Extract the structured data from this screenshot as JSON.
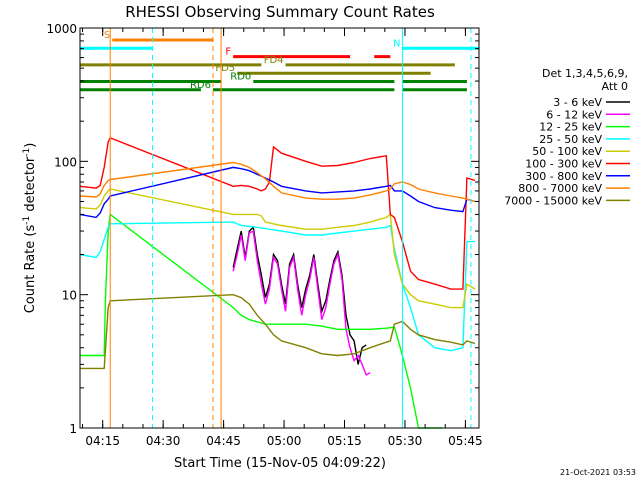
{
  "chart_data": {
    "type": "line",
    "title": "RHESSI Observing Summary Count Rates",
    "xlabel": "Start Time (15-Nov-05 04:09:22)",
    "ylabel_main": "Count Rate (s",
    "ylabel_sup1": "-1",
    "ylabel_mid": " detector",
    "ylabel_sup2": "-1",
    "ylabel_end": ")",
    "y_scale": "log",
    "ylim": [
      1,
      1000
    ],
    "xlim_minutes": [
      0,
      99
    ],
    "x_ticks": [
      {
        "m": 5.63,
        "label": "04:15"
      },
      {
        "m": 20.63,
        "label": "04:30"
      },
      {
        "m": 35.63,
        "label": "04:45"
      },
      {
        "m": 50.63,
        "label": "05:00"
      },
      {
        "m": 65.63,
        "label": "05:15"
      },
      {
        "m": 80.63,
        "label": "05:30"
      },
      {
        "m": 95.63,
        "label": "05:45"
      }
    ],
    "y_ticks": [
      {
        "v": 1,
        "label": "1"
      },
      {
        "v": 10,
        "label": "10"
      },
      {
        "v": 100,
        "label": "100"
      },
      {
        "v": 1000,
        "label": "1000"
      }
    ],
    "legend_header": [
      "Det 1,3,4,5,6,9,",
      "Att 0"
    ],
    "legend_position": "right",
    "timestamp": "21-Oct-2021 03:53",
    "series": [
      {
        "name": "3 - 6 keV",
        "color": "#000000",
        "points": [
          [
            38,
            16
          ],
          [
            39,
            22
          ],
          [
            40,
            30
          ],
          [
            41,
            19
          ],
          [
            42,
            30
          ],
          [
            43,
            32
          ],
          [
            44,
            20
          ],
          [
            45,
            14
          ],
          [
            46,
            9.5
          ],
          [
            47,
            12
          ],
          [
            48,
            20
          ],
          [
            49,
            18
          ],
          [
            50,
            12
          ],
          [
            51,
            8.5
          ],
          [
            52,
            17
          ],
          [
            53,
            20
          ],
          [
            54,
            12
          ],
          [
            55,
            8
          ],
          [
            56,
            11
          ],
          [
            57,
            14
          ],
          [
            58,
            20
          ],
          [
            59,
            12
          ],
          [
            60,
            7.5
          ],
          [
            61,
            9
          ],
          [
            62,
            13
          ],
          [
            63,
            18
          ],
          [
            64,
            21
          ],
          [
            65,
            14
          ],
          [
            66,
            7
          ],
          [
            67,
            5
          ],
          [
            68,
            4.5
          ],
          [
            69,
            3
          ],
          [
            70,
            4
          ],
          [
            71,
            4.2
          ]
        ]
      },
      {
        "name": "6 - 12 keV",
        "color": "#ff00ff",
        "points": [
          [
            38,
            15
          ],
          [
            39,
            20
          ],
          [
            40,
            28
          ],
          [
            41,
            18
          ],
          [
            42,
            29
          ],
          [
            43,
            30
          ],
          [
            44,
            18
          ],
          [
            45,
            12
          ],
          [
            46,
            8.5
          ],
          [
            47,
            11
          ],
          [
            48,
            19
          ],
          [
            49,
            17
          ],
          [
            50,
            11
          ],
          [
            51,
            7.5
          ],
          [
            52,
            16
          ],
          [
            53,
            19
          ],
          [
            54,
            11
          ],
          [
            55,
            7
          ],
          [
            56,
            10
          ],
          [
            57,
            13
          ],
          [
            58,
            19
          ],
          [
            59,
            11
          ],
          [
            60,
            6.5
          ],
          [
            61,
            8
          ],
          [
            62,
            12
          ],
          [
            63,
            17
          ],
          [
            64,
            20
          ],
          [
            65,
            13
          ],
          [
            66,
            5.5
          ],
          [
            67,
            4
          ],
          [
            68,
            3.2
          ],
          [
            69,
            3.5
          ],
          [
            70,
            3
          ],
          [
            71,
            2.5
          ],
          [
            72,
            2.6
          ]
        ]
      },
      {
        "name": "12 - 25 keV",
        "color": "#00ff00",
        "points": [
          [
            0,
            3.5
          ],
          [
            5,
            3.5
          ],
          [
            6,
            3.5
          ],
          [
            6.3,
            9
          ],
          [
            7,
            30
          ],
          [
            7.5,
            40
          ],
          [
            38,
            8
          ],
          [
            40,
            7
          ],
          [
            42,
            6.5
          ],
          [
            46,
            6
          ],
          [
            50,
            6
          ],
          [
            56,
            6
          ],
          [
            60,
            5.8
          ],
          [
            64,
            5.5
          ],
          [
            68,
            5.5
          ],
          [
            72,
            5.5
          ],
          [
            76,
            5.6
          ],
          [
            78,
            5.7
          ],
          [
            80,
            3.5
          ],
          [
            82,
            2
          ],
          [
            84,
            1
          ],
          [
            90,
            1
          ]
        ]
      },
      {
        "name": "25 - 50 keV",
        "color": "#00ffff",
        "points": [
          [
            0,
            20
          ],
          [
            4,
            19
          ],
          [
            5,
            21
          ],
          [
            6,
            26
          ],
          [
            7,
            32
          ],
          [
            7.5,
            34
          ],
          [
            38,
            35
          ],
          [
            40,
            33
          ],
          [
            44,
            32
          ],
          [
            50,
            30
          ],
          [
            56,
            28
          ],
          [
            60,
            28
          ],
          [
            64,
            29
          ],
          [
            68,
            30
          ],
          [
            72,
            31
          ],
          [
            76,
            32
          ],
          [
            77,
            33
          ],
          [
            78,
            22
          ],
          [
            80,
            12
          ],
          [
            82,
            8
          ],
          [
            84,
            5
          ],
          [
            88,
            4
          ],
          [
            92,
            3.8
          ],
          [
            95,
            4
          ],
          [
            96,
            25
          ],
          [
            98,
            25
          ]
        ]
      },
      {
        "name": "50 - 100 keV",
        "color": "#cccc00",
        "points": [
          [
            0,
            45
          ],
          [
            4,
            44
          ],
          [
            5,
            47
          ],
          [
            6,
            55
          ],
          [
            7,
            60
          ],
          [
            7.5,
            62
          ],
          [
            38,
            40
          ],
          [
            40,
            40
          ],
          [
            42,
            40
          ],
          [
            44,
            40
          ],
          [
            45,
            39
          ],
          [
            46,
            35
          ],
          [
            48,
            34
          ],
          [
            50,
            33
          ],
          [
            56,
            31
          ],
          [
            60,
            31
          ],
          [
            64,
            32
          ],
          [
            68,
            33
          ],
          [
            72,
            35
          ],
          [
            76,
            38
          ],
          [
            77,
            40
          ],
          [
            78,
            20
          ],
          [
            80,
            12
          ],
          [
            82,
            10
          ],
          [
            84,
            9
          ],
          [
            88,
            8.5
          ],
          [
            92,
            8
          ],
          [
            95,
            8
          ],
          [
            96,
            12
          ],
          [
            98,
            11
          ]
        ]
      },
      {
        "name": "100 - 300 keV",
        "color": "#ff0000",
        "points": [
          [
            0,
            65
          ],
          [
            4,
            63
          ],
          [
            5,
            66
          ],
          [
            6,
            90
          ],
          [
            7,
            140
          ],
          [
            7.5,
            150
          ],
          [
            38,
            65
          ],
          [
            40,
            66
          ],
          [
            42,
            65
          ],
          [
            44,
            62
          ],
          [
            45,
            60
          ],
          [
            46,
            62
          ],
          [
            47,
            70
          ],
          [
            48,
            128
          ],
          [
            50,
            115
          ],
          [
            56,
            100
          ],
          [
            60,
            92
          ],
          [
            64,
            93
          ],
          [
            68,
            98
          ],
          [
            72,
            105
          ],
          [
            76,
            110
          ],
          [
            77,
            40
          ],
          [
            78,
            38
          ],
          [
            80,
            25
          ],
          [
            82,
            15
          ],
          [
            84,
            13
          ],
          [
            88,
            12
          ],
          [
            92,
            11
          ],
          [
            95,
            11
          ],
          [
            96,
            75
          ],
          [
            98,
            72
          ]
        ]
      },
      {
        "name": "300 - 800 keV",
        "color": "#0000ff",
        "points": [
          [
            0,
            40
          ],
          [
            4,
            38
          ],
          [
            5,
            41
          ],
          [
            6,
            48
          ],
          [
            7,
            52
          ],
          [
            7.5,
            55
          ],
          [
            38,
            90
          ],
          [
            40,
            88
          ],
          [
            42,
            85
          ],
          [
            44,
            80
          ],
          [
            46,
            75
          ],
          [
            48,
            70
          ],
          [
            50,
            65
          ],
          [
            56,
            60
          ],
          [
            60,
            58
          ],
          [
            64,
            59
          ],
          [
            68,
            60
          ],
          [
            72,
            62
          ],
          [
            76,
            65
          ],
          [
            77,
            66
          ],
          [
            78,
            60
          ],
          [
            80,
            60
          ],
          [
            82,
            55
          ],
          [
            84,
            50
          ],
          [
            88,
            45
          ],
          [
            92,
            43
          ],
          [
            95,
            42
          ],
          [
            96,
            52
          ],
          [
            98,
            50
          ]
        ]
      },
      {
        "name": "800 - 7000 keV",
        "color": "#ff8000",
        "points": [
          [
            0,
            55
          ],
          [
            4,
            54
          ],
          [
            5,
            57
          ],
          [
            6,
            66
          ],
          [
            7,
            72
          ],
          [
            7.5,
            73
          ],
          [
            38,
            98
          ],
          [
            40,
            95
          ],
          [
            42,
            90
          ],
          [
            44,
            82
          ],
          [
            46,
            74
          ],
          [
            48,
            65
          ],
          [
            50,
            58
          ],
          [
            56,
            53
          ],
          [
            60,
            52
          ],
          [
            64,
            52
          ],
          [
            68,
            53
          ],
          [
            72,
            56
          ],
          [
            76,
            60
          ],
          [
            77,
            62
          ],
          [
            78,
            68
          ],
          [
            80,
            70
          ],
          [
            82,
            67
          ],
          [
            84,
            62
          ],
          [
            88,
            58
          ],
          [
            92,
            55
          ],
          [
            95,
            53
          ],
          [
            96,
            52
          ],
          [
            98,
            50
          ]
        ]
      },
      {
        "name": "7000 - 15000 keV",
        "color": "#808000",
        "points": [
          [
            0,
            2.8
          ],
          [
            5,
            2.8
          ],
          [
            6,
            2.8
          ],
          [
            7,
            8
          ],
          [
            7.5,
            9
          ],
          [
            38,
            10
          ],
          [
            40,
            9.5
          ],
          [
            42,
            8.5
          ],
          [
            44,
            7
          ],
          [
            46,
            6
          ],
          [
            48,
            5
          ],
          [
            50,
            4.5
          ],
          [
            56,
            4
          ],
          [
            60,
            3.6
          ],
          [
            64,
            3.5
          ],
          [
            68,
            3.6
          ],
          [
            72,
            4
          ],
          [
            76,
            4.4
          ],
          [
            77,
            4.5
          ],
          [
            78,
            6
          ],
          [
            80,
            6.3
          ],
          [
            82,
            5.5
          ],
          [
            84,
            5
          ],
          [
            88,
            4.6
          ],
          [
            92,
            4.4
          ],
          [
            95,
            4.2
          ],
          [
            96,
            4.5
          ],
          [
            98,
            4.3
          ]
        ]
      }
    ],
    "flag_bars": [
      {
        "label": "S",
        "color": "#ff8000",
        "segments": [
          [
            8,
            33
          ]
        ]
      },
      {
        "label": "N",
        "color": "#00ffff",
        "segments": [
          [
            0,
            18
          ],
          [
            80,
            99
          ]
        ]
      },
      {
        "label": "F",
        "color": "#ff0000",
        "segments": [
          [
            38,
            67
          ],
          [
            73,
            77
          ]
        ]
      },
      {
        "label": "FD4",
        "color": "#808000",
        "segments": [
          [
            0,
            45
          ],
          [
            51,
            93
          ]
        ]
      },
      {
        "label": "FD5",
        "color": "#808000",
        "segments": [
          [
            39,
            87
          ]
        ]
      },
      {
        "label": "RD0",
        "color": "#008000",
        "segments": [
          [
            0,
            35
          ],
          [
            43,
            78
          ],
          [
            80,
            96
          ]
        ]
      },
      {
        "label": "RD6",
        "color": "#008000",
        "segments": [
          [
            0,
            30
          ],
          [
            33,
            78
          ],
          [
            80,
            96
          ]
        ]
      }
    ],
    "vertical_markers": [
      {
        "m": 18,
        "color": "#00ffff",
        "style": "dashed"
      },
      {
        "m": 33,
        "color": "#ff8000",
        "style": "dashed"
      },
      {
        "m": 35,
        "color": "#ff8000",
        "style": "solid"
      },
      {
        "m": 7.5,
        "color": "#ff8000",
        "style": "solid"
      },
      {
        "m": 80,
        "color": "#00ffff",
        "style": "solid"
      },
      {
        "m": 97,
        "color": "#00ffff",
        "style": "dashed"
      }
    ]
  }
}
